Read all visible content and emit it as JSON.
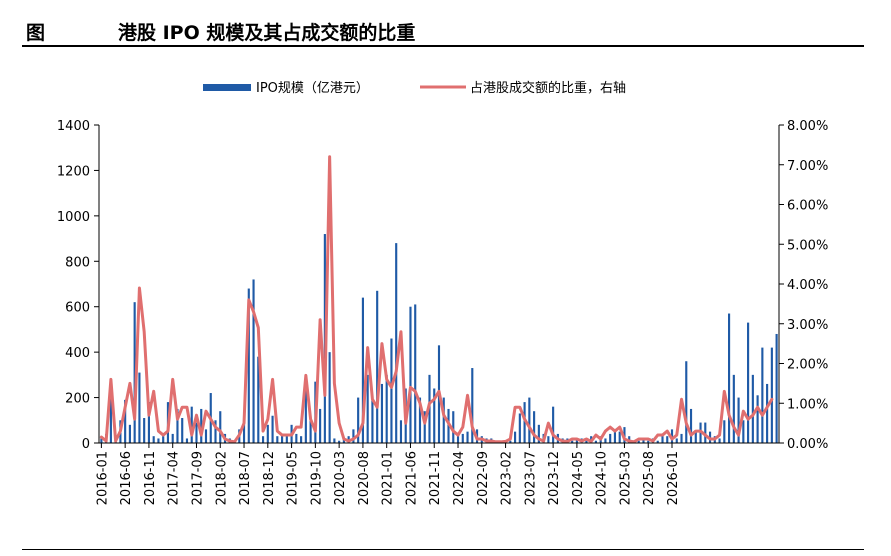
{
  "header": {
    "figure_label": "图",
    "title": "港股 IPO 规模及其占成交额的比重"
  },
  "chart_data": {
    "type": "bar",
    "title": "港股 IPO 规模及其占成交额的比重",
    "legend_position": "top-center",
    "x_tick_labels": [
      "2016-01",
      "2016-06",
      "2016-11",
      "2017-04",
      "2017-09",
      "2018-02",
      "2018-07",
      "2018-12",
      "2019-05",
      "2019-10",
      "2020-03",
      "2020-08",
      "2021-01",
      "2021-06",
      "2021-11",
      "2022-04",
      "2022-09",
      "2023-02",
      "2023-07",
      "2023-12",
      "2024-05",
      "2024-10",
      "2025-03",
      "2025-08",
      "2026-01"
    ],
    "x_tick_step": 5,
    "y_left": {
      "ylim": [
        0,
        1400
      ],
      "ticks": [
        "0",
        "200",
        "400",
        "600",
        "800",
        "1000",
        "1200",
        "1400"
      ]
    },
    "y_right": {
      "ylim": [
        0,
        0.08
      ],
      "ticks": [
        "0.00%",
        "1.00%",
        "2.00%",
        "3.00%",
        "4.00%",
        "5.00%",
        "6.00%",
        "7.00%",
        "8.00%"
      ]
    },
    "series": [
      {
        "name": "IPO规模（亿港元）",
        "type": "bar",
        "color": "#1f5aa6",
        "axis": "left",
        "values": [
          20,
          40,
          240,
          10,
          100,
          190,
          80,
          620,
          310,
          110,
          180,
          30,
          20,
          30,
          180,
          40,
          150,
          110,
          20,
          160,
          90,
          150,
          60,
          220,
          100,
          140,
          40,
          20,
          10,
          60,
          110,
          680,
          720,
          380,
          30,
          80,
          120,
          30,
          40,
          40,
          80,
          40,
          30,
          300,
          100,
          270,
          150,
          920,
          400,
          20,
          10,
          20,
          30,
          60,
          200,
          640,
          300,
          200,
          670,
          260,
          300,
          460,
          880,
          100,
          240,
          600,
          610,
          200,
          140,
          300,
          240,
          430,
          200,
          150,
          140,
          40,
          40,
          50,
          330,
          60,
          30,
          20,
          20,
          10,
          10,
          10,
          10,
          50,
          130,
          180,
          200,
          140,
          80,
          40,
          30,
          160,
          40,
          20,
          20,
          10,
          20,
          20,
          10,
          30,
          10,
          30,
          20,
          40,
          60,
          50,
          70,
          30,
          10,
          10,
          20,
          10,
          20,
          10,
          40,
          30,
          60,
          20,
          40,
          360,
          150,
          50,
          90,
          90,
          50,
          30,
          20,
          100,
          570,
          300,
          200,
          100,
          530,
          300,
          210,
          420,
          260,
          420,
          480
        ]
      },
      {
        "name": "占港股成交额的比重，右轴",
        "type": "line",
        "color": "#e06f6f",
        "axis": "right",
        "values": [
          0.0015,
          0.0005,
          0.016,
          0.0005,
          0.003,
          0.009,
          0.015,
          0.006,
          0.039,
          0.028,
          0.007,
          0.013,
          0.003,
          0.002,
          0.003,
          0.016,
          0.006,
          0.009,
          0.009,
          0.002,
          0.007,
          0.002,
          0.008,
          0.006,
          0.004,
          0.003,
          0.001,
          0.0005,
          0.0003,
          0.002,
          0.005,
          0.036,
          0.033,
          0.029,
          0.003,
          0.006,
          0.016,
          0.003,
          0.002,
          0.002,
          0.002,
          0.004,
          0.004,
          0.017,
          0.006,
          0.003,
          0.031,
          0.012,
          0.072,
          0.015,
          0.005,
          0.001,
          0.0005,
          0.001,
          0.002,
          0.005,
          0.024,
          0.011,
          0.009,
          0.025,
          0.016,
          0.014,
          0.018,
          0.028,
          0.005,
          0.014,
          0.013,
          0.01,
          0.005,
          0.01,
          0.011,
          0.013,
          0.007,
          0.005,
          0.003,
          0.002,
          0.004,
          0.012,
          0.004,
          0.001,
          0.001,
          0.0005,
          0.0005,
          0.0003,
          0.0003,
          0.0004,
          0.001,
          0.009,
          0.009,
          0.006,
          0.004,
          0.002,
          0.001,
          0.0005,
          0.005,
          0.002,
          0.001,
          0.0005,
          0.0004,
          0.001,
          0.001,
          0.0005,
          0.001,
          0.0004,
          0.002,
          0.001,
          0.003,
          0.004,
          0.003,
          0.004,
          0.001,
          0.0005,
          0.0003,
          0.001,
          0.001,
          0.001,
          0.0005,
          0.002,
          0.002,
          0.003,
          0.001,
          0.002,
          0.011,
          0.005,
          0.002,
          0.003,
          0.003,
          0.002,
          0.001,
          0.001,
          0.002,
          0.013,
          0.007,
          0.004,
          0.002,
          0.008,
          0.006,
          0.007,
          0.009,
          0.007,
          0.009,
          0.011
        ]
      }
    ]
  }
}
